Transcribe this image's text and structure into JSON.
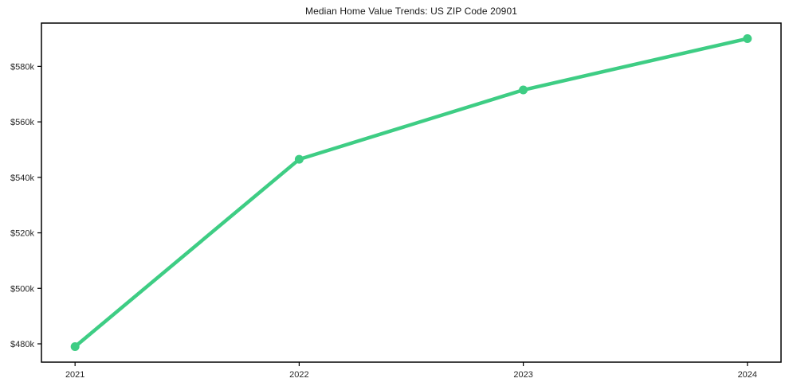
{
  "figure": {
    "background": "#ffffff",
    "spine_color": "#000000",
    "tick_color": "#000000",
    "tick_text_color": "#262626"
  },
  "chart_data": {
    "type": "line",
    "title": "Median Home Value Trends: US ZIP Code 20901",
    "xlabel": "",
    "ylabel": "",
    "x": [
      2021,
      2022,
      2023,
      2024
    ],
    "x_tick_labels": [
      "2021",
      "2022",
      "2023",
      "2024"
    ],
    "series": [
      {
        "name": "median-home-value",
        "values": [
          479000,
          546500,
          571500,
          590000
        ],
        "color": "#3ecd84",
        "line_width": 4.5,
        "marker": "circle",
        "marker_radius": 5.5
      }
    ],
    "xlim": [
      2020.85,
      2024.15
    ],
    "ylim": [
      473400,
      595600
    ],
    "y_ticks": [
      480000,
      500000,
      520000,
      540000,
      560000,
      580000
    ],
    "y_tick_labels": [
      "$480k",
      "$500k",
      "$520k",
      "$540k",
      "$560k",
      "$580k"
    ],
    "grid": false,
    "legend": null
  }
}
